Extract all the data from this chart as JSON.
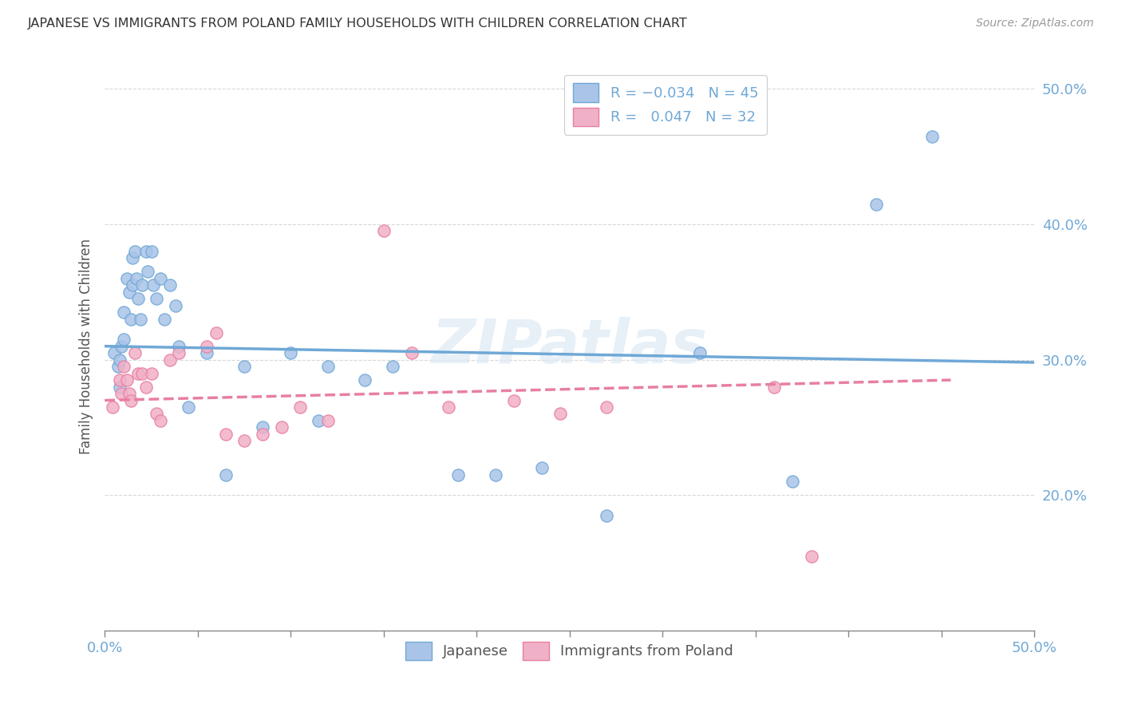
{
  "title": "JAPANESE VS IMMIGRANTS FROM POLAND FAMILY HOUSEHOLDS WITH CHILDREN CORRELATION CHART",
  "source": "Source: ZipAtlas.com",
  "ylabel": "Family Households with Children",
  "xlim": [
    0.0,
    0.5
  ],
  "ylim": [
    0.1,
    0.52
  ],
  "watermark": "ZIPatlas",
  "blue_color": "#6fa8d6",
  "pink_color": "#e87fa0",
  "blue_fill": "#aac4e8",
  "pink_fill": "#f0b0c8",
  "japanese_x": [
    0.005,
    0.007,
    0.008,
    0.008,
    0.009,
    0.01,
    0.01,
    0.012,
    0.013,
    0.014,
    0.015,
    0.015,
    0.016,
    0.017,
    0.018,
    0.019,
    0.02,
    0.022,
    0.023,
    0.025,
    0.026,
    0.028,
    0.03,
    0.032,
    0.035,
    0.038,
    0.04,
    0.045,
    0.055,
    0.065,
    0.075,
    0.085,
    0.1,
    0.115,
    0.12,
    0.14,
    0.155,
    0.19,
    0.21,
    0.235,
    0.27,
    0.32,
    0.37,
    0.415,
    0.445
  ],
  "japanese_y": [
    0.305,
    0.295,
    0.3,
    0.28,
    0.31,
    0.335,
    0.315,
    0.36,
    0.35,
    0.33,
    0.375,
    0.355,
    0.38,
    0.36,
    0.345,
    0.33,
    0.355,
    0.38,
    0.365,
    0.38,
    0.355,
    0.345,
    0.36,
    0.33,
    0.355,
    0.34,
    0.31,
    0.265,
    0.305,
    0.215,
    0.295,
    0.25,
    0.305,
    0.255,
    0.295,
    0.285,
    0.295,
    0.215,
    0.215,
    0.22,
    0.185,
    0.305,
    0.21,
    0.415,
    0.465
  ],
  "poland_x": [
    0.004,
    0.008,
    0.009,
    0.01,
    0.012,
    0.013,
    0.014,
    0.016,
    0.018,
    0.02,
    0.022,
    0.025,
    0.028,
    0.03,
    0.035,
    0.04,
    0.055,
    0.06,
    0.065,
    0.075,
    0.085,
    0.095,
    0.105,
    0.12,
    0.15,
    0.165,
    0.185,
    0.22,
    0.245,
    0.27,
    0.36,
    0.38
  ],
  "poland_y": [
    0.265,
    0.285,
    0.275,
    0.295,
    0.285,
    0.275,
    0.27,
    0.305,
    0.29,
    0.29,
    0.28,
    0.29,
    0.26,
    0.255,
    0.3,
    0.305,
    0.31,
    0.32,
    0.245,
    0.24,
    0.245,
    0.25,
    0.265,
    0.255,
    0.395,
    0.305,
    0.265,
    0.27,
    0.26,
    0.265,
    0.28,
    0.155
  ],
  "blue_line_x": [
    0.0,
    0.5
  ],
  "blue_line_y": [
    0.31,
    0.298
  ],
  "pink_line_x": [
    0.0,
    0.455
  ],
  "pink_line_y": [
    0.27,
    0.285
  ],
  "background_color": "#ffffff",
  "grid_color": "#d8d8d8"
}
